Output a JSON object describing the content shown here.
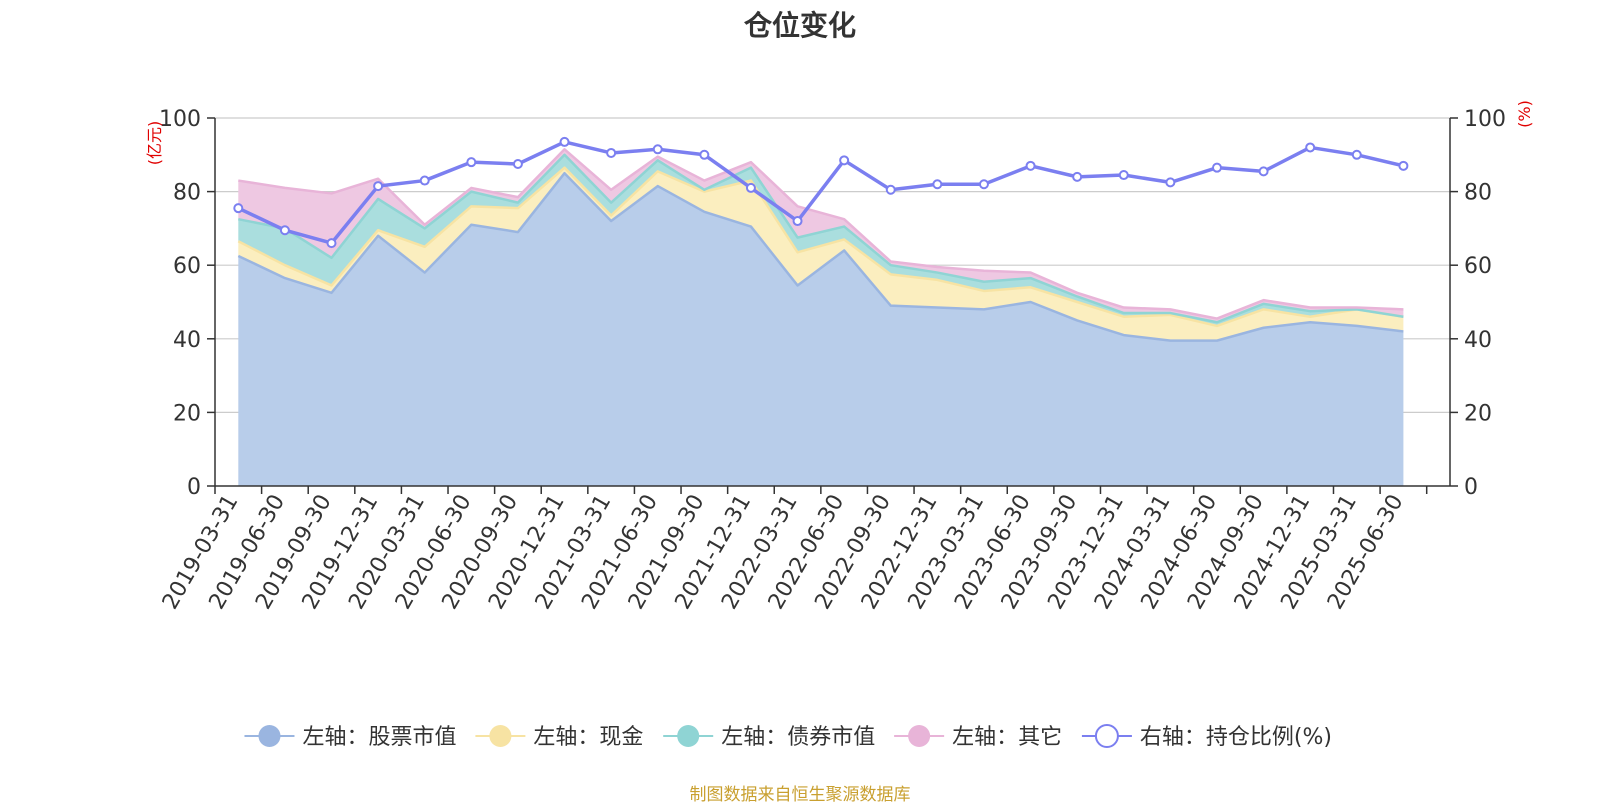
{
  "title": "仓位变化",
  "source_note": "制图数据来自恒生聚源数据库",
  "chart_data": {
    "type": "area",
    "stacked": true,
    "title": "仓位变化",
    "left_axis": {
      "unit": "(亿元)",
      "ylim": [
        0,
        100
      ],
      "ticks": [
        0,
        20,
        40,
        60,
        80,
        100
      ]
    },
    "right_axis": {
      "unit": "(%)",
      "ylim": [
        0,
        100
      ],
      "ticks": [
        0,
        20,
        40,
        60,
        80,
        100
      ]
    },
    "grid": true,
    "legend_position": "bottom",
    "categories": [
      "2019-03-31",
      "2019-06-30",
      "2019-09-30",
      "2019-12-31",
      "2020-03-31",
      "2020-06-30",
      "2020-09-30",
      "2020-12-31",
      "2021-03-31",
      "2021-06-30",
      "2021-09-30",
      "2021-12-31",
      "2022-03-31",
      "2022-06-30",
      "2022-09-30",
      "2022-12-31",
      "2023-03-31",
      "2023-06-30",
      "2023-09-30",
      "2023-12-31",
      "2024-03-31",
      "2024-06-30",
      "2024-09-30",
      "2024-12-31",
      "2025-03-31",
      "2025-06-30"
    ],
    "series": [
      {
        "name": "左轴：股票市值",
        "axis": "left",
        "color": "#9ab5e0",
        "fill": "#b8cdea",
        "values": [
          62.5,
          56.5,
          52.5,
          68.0,
          58.0,
          71.0,
          69.0,
          85.0,
          72.0,
          81.5,
          74.5,
          70.5,
          54.5,
          64.0,
          49.0,
          48.5,
          48.0,
          50.0,
          45.0,
          41.0,
          39.5,
          39.5,
          43.0,
          44.5,
          43.5,
          42.0
        ]
      },
      {
        "name": "左轴：现金",
        "axis": "left",
        "color": "#f7e3a3",
        "fill": "#fbeebf",
        "values": [
          4.0,
          3.5,
          2.0,
          1.5,
          7.0,
          5.0,
          6.5,
          1.5,
          1.5,
          4.0,
          5.5,
          12.5,
          9.0,
          3.0,
          8.5,
          7.5,
          5.0,
          4.0,
          5.0,
          5.0,
          7.0,
          4.0,
          5.0,
          1.5,
          4.5,
          4.0
        ]
      },
      {
        "name": "左轴：债券市值",
        "axis": "left",
        "color": "#8fd4d4",
        "fill": "#aadede",
        "values": [
          6.0,
          10.0,
          7.5,
          8.5,
          5.0,
          4.0,
          1.5,
          3.5,
          3.5,
          3.0,
          0.5,
          3.5,
          4.0,
          3.5,
          2.5,
          2.0,
          2.5,
          2.5,
          1.5,
          1.0,
          0.5,
          1.0,
          1.5,
          1.5,
          0.0,
          0.0
        ]
      },
      {
        "name": "左轴：其它",
        "axis": "left",
        "color": "#e8b4d8",
        "fill": "#eec8e2",
        "values": [
          10.5,
          11.0,
          17.5,
          5.5,
          1.0,
          1.0,
          1.5,
          1.5,
          3.5,
          1.0,
          2.5,
          1.5,
          8.5,
          2.0,
          1.0,
          1.5,
          3.0,
          1.5,
          1.0,
          1.5,
          1.0,
          1.0,
          1.0,
          1.0,
          0.5,
          2.0
        ]
      },
      {
        "name": "右轴：持仓比例(%)",
        "axis": "right",
        "type": "line",
        "color": "#7b7ff0",
        "values": [
          75.5,
          69.5,
          66.0,
          81.5,
          83.0,
          88.0,
          87.5,
          93.5,
          90.5,
          91.5,
          90.0,
          81.0,
          72.0,
          88.5,
          80.5,
          82.0,
          82.0,
          87.0,
          84.0,
          84.5,
          82.5,
          86.5,
          85.5,
          92.0,
          90.0,
          87.0
        ]
      }
    ]
  }
}
